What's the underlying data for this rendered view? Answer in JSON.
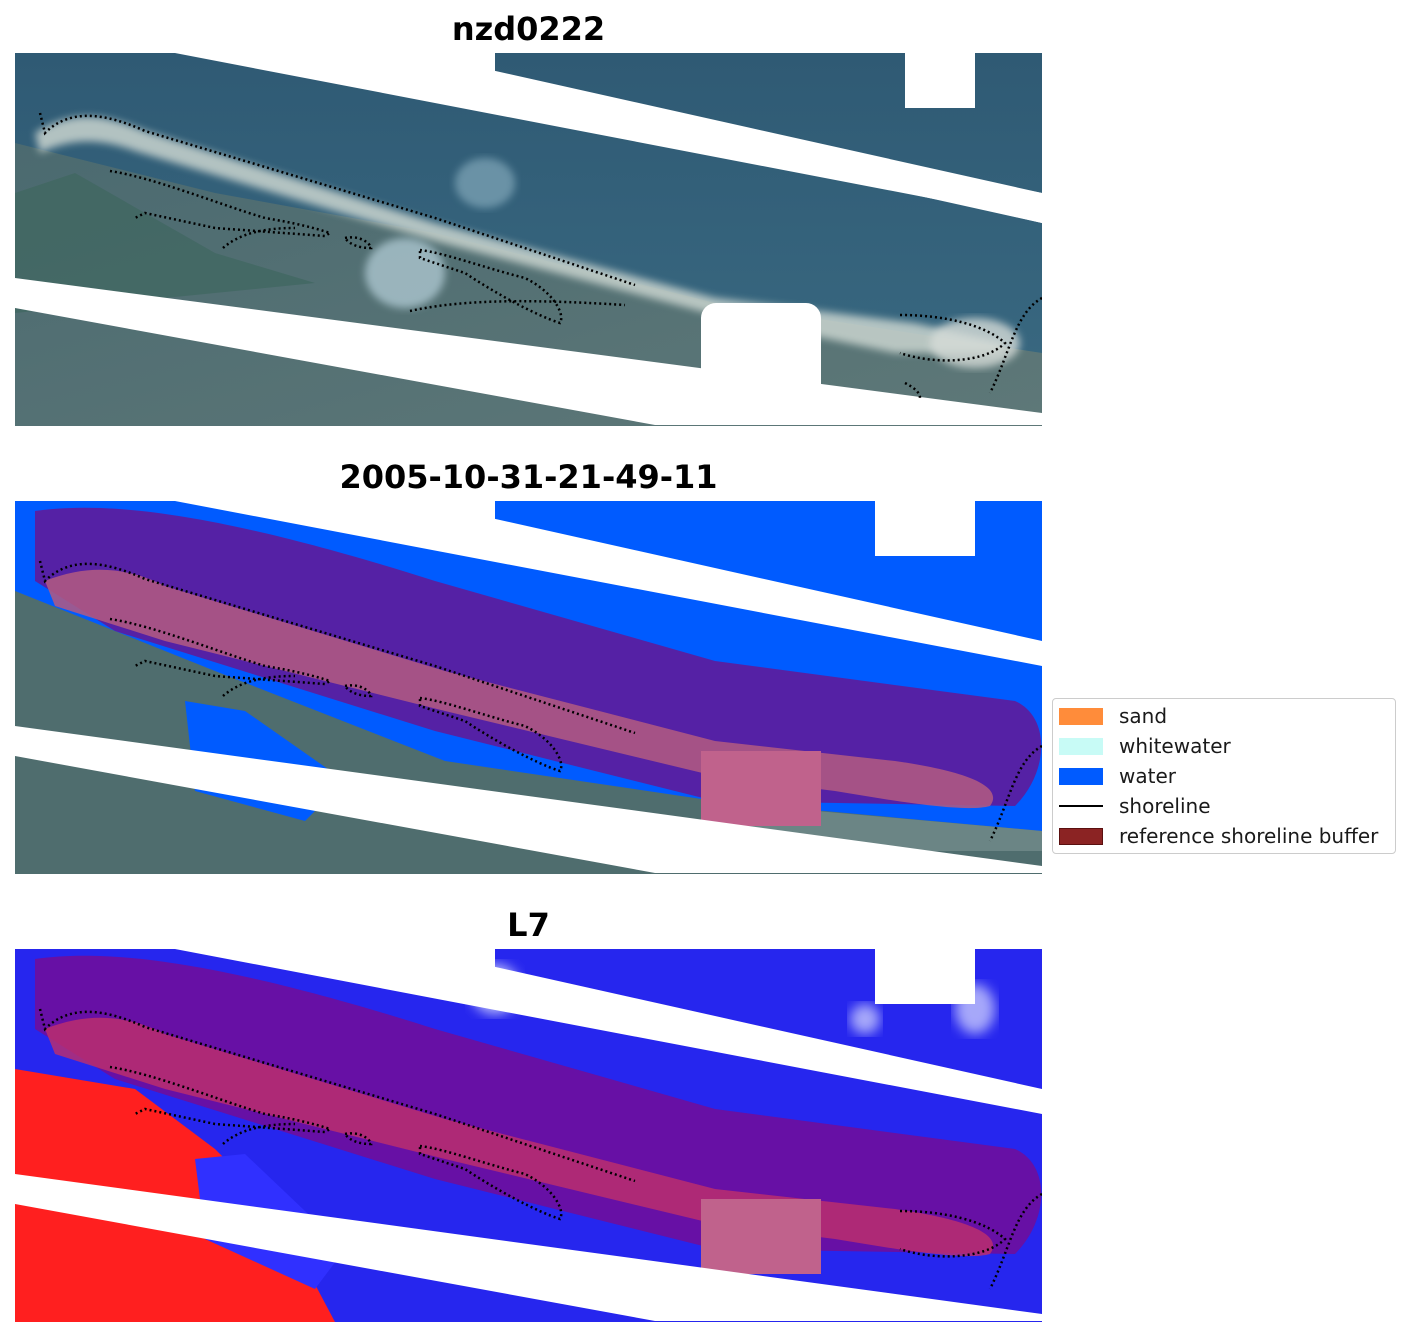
{
  "panels": [
    {
      "id": "rgb",
      "title": "nzd0222"
    },
    {
      "id": "classified",
      "title": "2005-10-31-21-49-11"
    },
    {
      "id": "mndwi",
      "title": "L7"
    }
  ],
  "legend": {
    "items": [
      {
        "label": "sand",
        "color": "#ff8c3a",
        "kind": "patch"
      },
      {
        "label": "whitewater",
        "color": "#c8fbf6",
        "kind": "patch"
      },
      {
        "label": "water",
        "color": "#005bff",
        "kind": "patch"
      },
      {
        "label": "shoreline",
        "color": "#000000",
        "kind": "line"
      },
      {
        "label": "reference shoreline buffer",
        "color": "#8b2323",
        "kind": "patch"
      }
    ]
  },
  "colors": {
    "buffer_overlay": "#5a1fa0",
    "buffer_fill": "#b45a80",
    "water": "#005bff",
    "land_red": "#ff2020",
    "water_blue": "#2020ff",
    "nodata": "#ffffff"
  }
}
